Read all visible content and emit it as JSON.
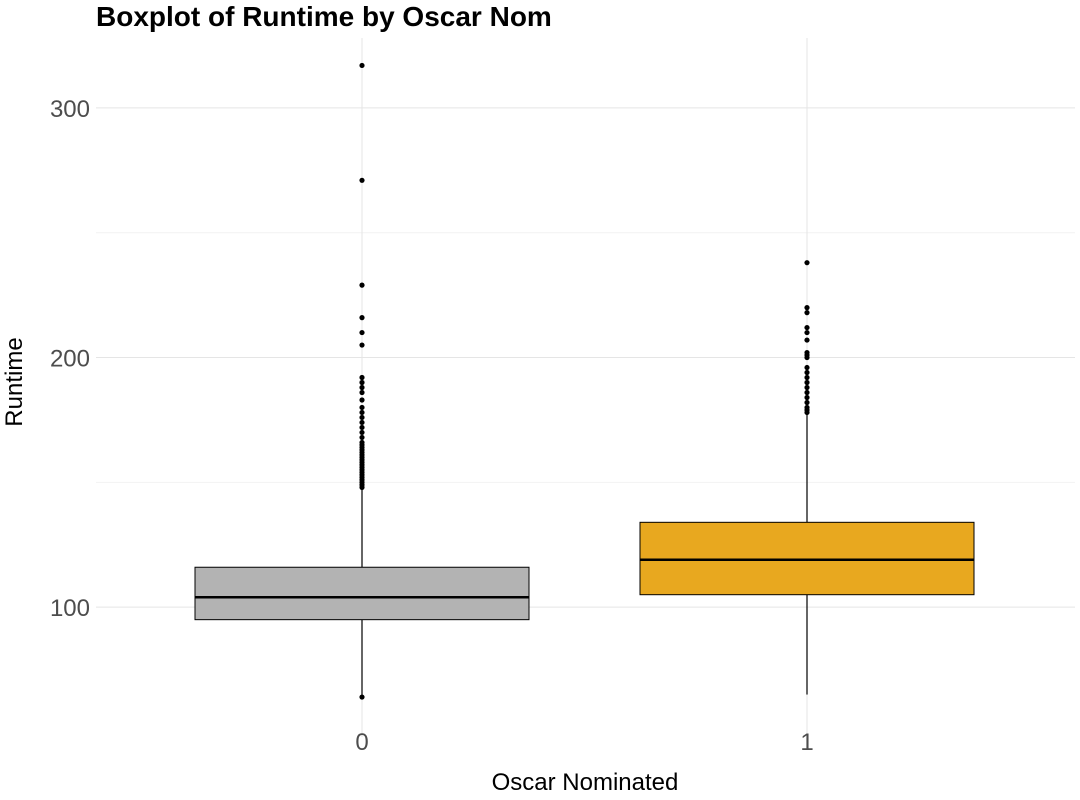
{
  "chart_data": {
    "type": "boxplot",
    "title": "Boxplot of Runtime by Oscar Nom",
    "xlabel": "Oscar Nominated",
    "ylabel": "Runtime",
    "categories": [
      "0",
      "1"
    ],
    "ylim": [
      48,
      328
    ],
    "y_ticks": [
      100,
      200,
      300
    ],
    "y_tick_labels": [
      "100",
      "200",
      "300"
    ],
    "y_minor_ticks": [
      150,
      250
    ],
    "grid": true,
    "legend": "none",
    "boxes": [
      {
        "category": "0",
        "color": "#b3b3b3",
        "q1": 95,
        "median": 104,
        "q3": 116,
        "whisker_low": 64,
        "whisker_high": 148,
        "outliers": [
          64,
          148,
          149,
          150,
          151,
          152,
          153,
          154,
          155,
          156,
          157,
          158,
          159,
          160,
          161,
          162,
          163,
          164,
          165,
          166,
          168,
          170,
          172,
          174,
          176,
          178,
          180,
          183,
          186,
          188,
          190,
          192,
          205,
          210,
          216,
          229,
          271,
          317
        ]
      },
      {
        "category": "1",
        "color": "#e8a81f",
        "q1": 105,
        "median": 119,
        "q3": 134,
        "whisker_low": 65,
        "whisker_high": 178,
        "outliers": [
          178,
          179,
          180,
          182,
          184,
          186,
          188,
          190,
          192,
          194,
          196,
          200,
          201,
          202,
          207,
          210,
          212,
          218,
          220,
          238
        ]
      }
    ]
  }
}
